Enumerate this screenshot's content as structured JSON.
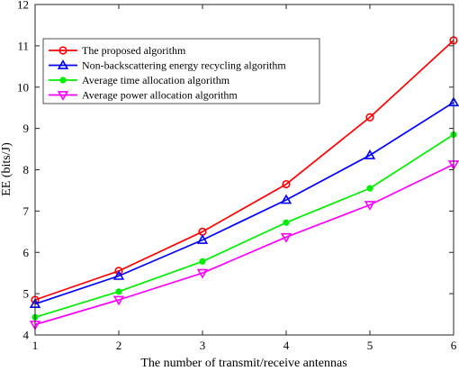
{
  "chart_data": {
    "type": "line",
    "xlabel": "The number of transmit/receive antennas",
    "ylabel": "EE (bits/J)",
    "xlim": [
      1,
      6
    ],
    "ylim": [
      4,
      12
    ],
    "x": [
      1,
      2,
      3,
      4,
      5,
      6
    ],
    "x_ticks": [
      "1",
      "2",
      "3",
      "4",
      "5",
      "6"
    ],
    "y_ticks": [
      "4",
      "5",
      "6",
      "7",
      "8",
      "9",
      "10",
      "11",
      "12"
    ],
    "grid": false,
    "legend_position": "top-left",
    "series": [
      {
        "name": "The proposed algorithm",
        "color": "#ff0000",
        "marker": "circle",
        "values": [
          4.85,
          5.55,
          6.5,
          7.65,
          9.27,
          11.13
        ]
      },
      {
        "name": "Non-backscattering energy recycling algorithm",
        "color": "#0000ff",
        "marker": "triangle-up",
        "values": [
          4.75,
          5.43,
          6.3,
          7.27,
          8.35,
          9.63
        ]
      },
      {
        "name": "Average time allocation algorithm",
        "color": "#00ee00",
        "marker": "dot",
        "values": [
          4.43,
          5.05,
          5.78,
          6.72,
          7.55,
          8.85
        ]
      },
      {
        "name": "Average power allocation algorithm",
        "color": "#ff00ff",
        "marker": "triangle-down",
        "values": [
          4.25,
          4.85,
          5.5,
          6.37,
          7.15,
          8.13
        ]
      }
    ]
  }
}
